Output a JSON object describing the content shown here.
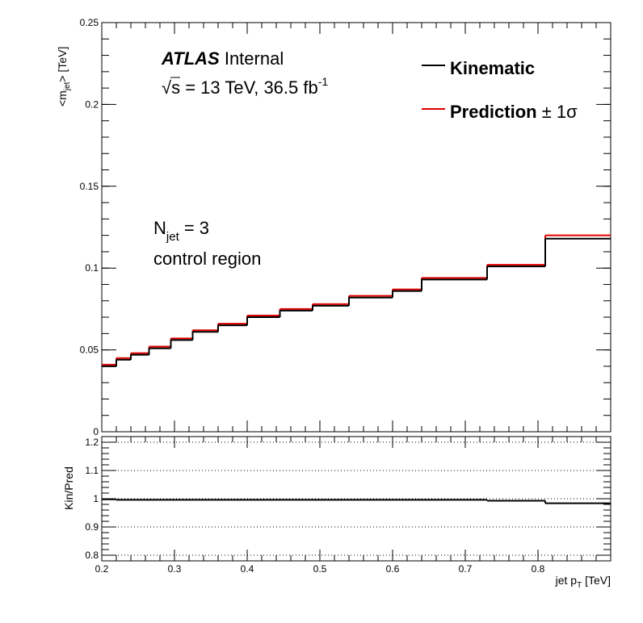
{
  "chart_data": [
    {
      "type": "line",
      "step": true,
      "ylabel_main": "<m",
      "ylabel_sub": "jet",
      "ylabel_tail": "> [TeV]",
      "xlim": [
        0.2,
        0.9
      ],
      "ylim": [
        0,
        0.25
      ],
      "yticks": [
        0,
        0.05,
        0.1,
        0.15,
        0.2,
        0.25
      ],
      "ytick_labels": [
        "0",
        "0.05",
        "0.1",
        "0.15",
        "0.2",
        "0.25"
      ],
      "bin_edges": [
        0.2,
        0.22,
        0.24,
        0.265,
        0.295,
        0.325,
        0.36,
        0.4,
        0.445,
        0.49,
        0.54,
        0.6,
        0.64,
        0.73,
        0.81,
        0.9
      ],
      "series": [
        {
          "name": "Kinematic",
          "color": "#000000",
          "values": [
            0.04,
            0.044,
            0.047,
            0.051,
            0.056,
            0.061,
            0.065,
            0.07,
            0.074,
            0.077,
            0.082,
            0.086,
            0.093,
            0.101,
            0.118
          ]
        },
        {
          "name": "Prediction",
          "color": "#e00000",
          "values": [
            0.041,
            0.045,
            0.048,
            0.052,
            0.057,
            0.062,
            0.066,
            0.071,
            0.075,
            0.078,
            0.083,
            0.087,
            0.094,
            0.102,
            0.12
          ]
        }
      ],
      "legend_suffix": "± 1σ",
      "annotations": {
        "atlas": "ATLAS",
        "internal": "Internal",
        "energy_pre": "s = 13 TeV, 36.5 fb",
        "energy_sup": "-1",
        "sqrt_symbol": "√",
        "njet_main": "N",
        "njet_sub": "jet",
        "njet_tail": " = 3",
        "region": "control region"
      }
    },
    {
      "type": "line",
      "step": true,
      "ylabel": "Kin/Pred",
      "xlabel_main": "jet p",
      "xlabel_sub": "T",
      "xlabel_tail": " [TeV]",
      "xlim": [
        0.2,
        0.9
      ],
      "ylim": [
        0.78,
        1.22
      ],
      "yticks": [
        0.8,
        0.9,
        1.0,
        1.1,
        1.2
      ],
      "ytick_labels": [
        "0.8",
        "0.9",
        "1",
        "1.1",
        "1.2"
      ],
      "xticks": [
        0.2,
        0.3,
        0.4,
        0.5,
        0.6,
        0.7,
        0.8
      ],
      "xtick_labels": [
        "0.2",
        "0.3",
        "0.4",
        "0.5",
        "0.6",
        "0.7",
        "0.8"
      ],
      "grid": "horizontal dotted",
      "ratio_values": [
        0.998,
        0.996,
        0.996,
        0.996,
        0.996,
        0.996,
        0.996,
        0.996,
        0.996,
        0.996,
        0.996,
        0.996,
        0.996,
        0.993,
        0.984
      ]
    }
  ]
}
